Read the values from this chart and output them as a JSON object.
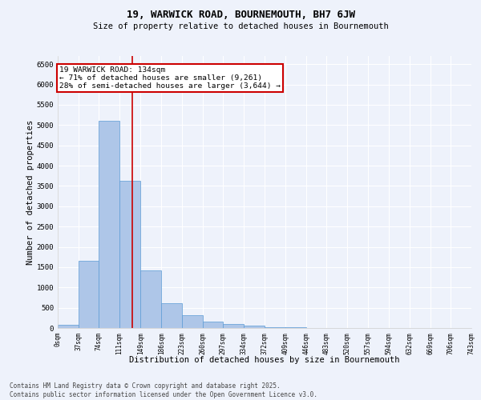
{
  "title1": "19, WARWICK ROAD, BOURNEMOUTH, BH7 6JW",
  "title2": "Size of property relative to detached houses in Bournemouth",
  "xlabel": "Distribution of detached houses by size in Bournemouth",
  "ylabel": "Number of detached properties",
  "footer1": "Contains HM Land Registry data © Crown copyright and database right 2025.",
  "footer2": "Contains public sector information licensed under the Open Government Licence v3.0.",
  "annotation_title": "19 WARWICK ROAD: 134sqm",
  "annotation_line1": "← 71% of detached houses are smaller (9,261)",
  "annotation_line2": "28% of semi-detached houses are larger (3,644) →",
  "property_size": 134,
  "bin_edges": [
    0,
    37,
    74,
    111,
    149,
    186,
    223,
    260,
    297,
    334,
    372,
    409,
    446,
    483,
    520,
    557,
    594,
    632,
    669,
    706,
    743
  ],
  "bar_heights": [
    75,
    1650,
    5100,
    3620,
    1420,
    620,
    320,
    155,
    95,
    50,
    20,
    10,
    5,
    0,
    0,
    0,
    0,
    0,
    0,
    0
  ],
  "bar_color": "#aec6e8",
  "bar_edge_color": "#5b9bd5",
  "red_line_color": "#cc0000",
  "annotation_box_color": "#cc0000",
  "background_color": "#eef2fb",
  "ylim": [
    0,
    6700
  ],
  "xlim": [
    0,
    743
  ]
}
